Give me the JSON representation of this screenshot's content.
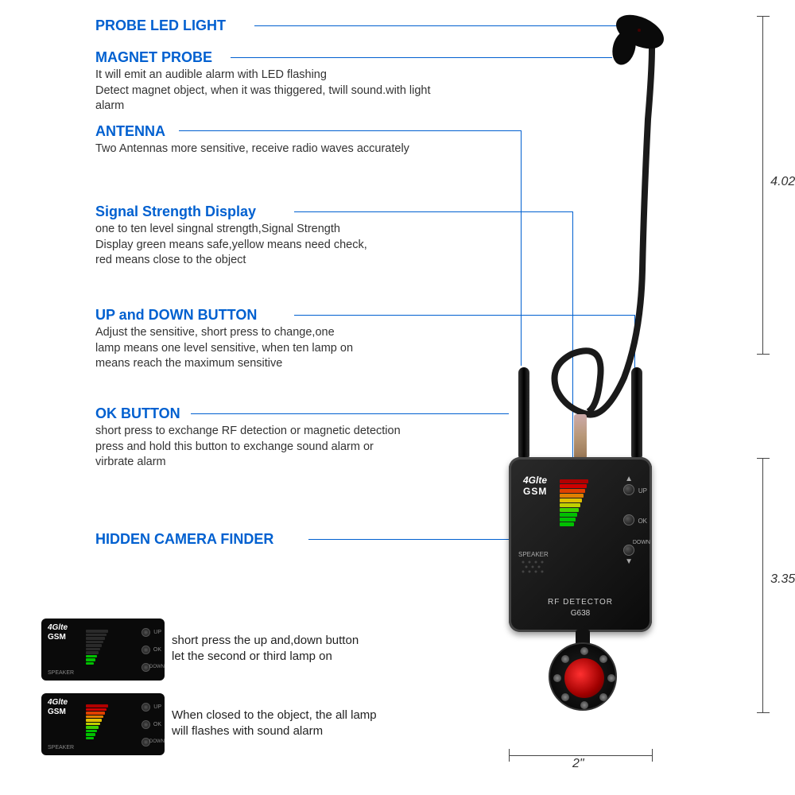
{
  "labels": {
    "probe_led": {
      "title": "PROBE LED LIGHT",
      "desc": ""
    },
    "magnet_probe": {
      "title": "MAGNET PROBE",
      "desc": "It will emit an audible alarm with LED flashing\nDetect magnet object, when it was thiggered, twill sound.with light alarm"
    },
    "antenna": {
      "title": "ANTENNA",
      "desc": "Two Antennas more sensitive, receive radio waves accurately"
    },
    "signal": {
      "title": "Signal Strength Display",
      "desc": "one to ten level singnal strength,Signal Strength\nDisplay green means safe,yellow means need check,\nred means close to the object"
    },
    "updown": {
      "title": "UP and DOWN BUTTON",
      "desc": "Adjust the sensitive, short press to change,one\nlamp means one level sensitive, when ten lamp on\nmeans reach the maximum sensitive"
    },
    "ok": {
      "title": "OK BUTTON",
      "desc": "short press to exchange RF detection or magnetic detection\npress and hold this button to exchange sound alarm or\nvirbrate alarm"
    },
    "camera": {
      "title": "HIDDEN CAMERA FINDER",
      "desc": ""
    }
  },
  "device": {
    "brand_top": "4Glte",
    "brand_bottom": "GSM",
    "speaker": "SPEAKER",
    "rf_label": "RF DETECTOR",
    "model": "G638",
    "btn_up": "UP",
    "btn_ok": "OK",
    "btn_down": "DOWN"
  },
  "bars": {
    "colors": [
      "#00c000",
      "#00c000",
      "#00c000",
      "#40d000",
      "#c0d000",
      "#e0c000",
      "#e08000",
      "#e04000",
      "#d00000",
      "#b00000"
    ],
    "widths": [
      18,
      20,
      22,
      24,
      26,
      28,
      30,
      32,
      34,
      36
    ],
    "lit_main": 10
  },
  "mini": {
    "lit_a": 3,
    "lit_b": 10,
    "caption_a": "short press the up and,down button\nlet the second or third lamp on",
    "caption_b": "When closed to the object, the all lamp\nwill flashes with sound alarm"
  },
  "dims": {
    "top": "4.02\"",
    "mid": "3.35\"",
    "bottom": "2\""
  },
  "colors": {
    "header": "#0060d0",
    "line": "#0060d0"
  }
}
